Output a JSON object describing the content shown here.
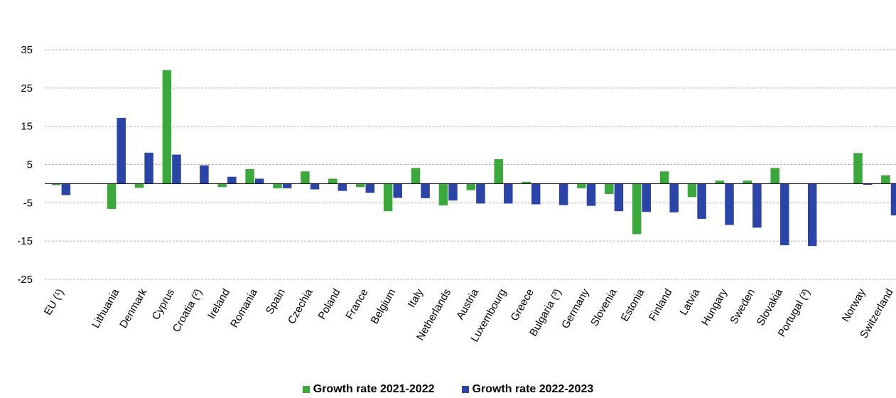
{
  "chart_data": {
    "type": "bar",
    "categories": [
      "EU (¹)",
      "Lithuania",
      "Denmark",
      "Cyprus",
      "Croatia (²)",
      "Ireland",
      "Romania",
      "Spain",
      "Czechia",
      "Poland",
      "France",
      "Belgium",
      "Italy",
      "Netherlands",
      "Austria",
      "Luxembourg",
      "Greece",
      "Bulgaria (³)",
      "Germany",
      "Slovenia",
      "Estonia",
      "Finland",
      "Latvia",
      "Hungary",
      "Sweden",
      "Slovakia",
      "Portugal (³)",
      "Norway",
      "Switzerland"
    ],
    "series": [
      {
        "name": "Growth rate 2021-2022",
        "color": "#3aa83a",
        "values": [
          -0.4,
          -6.6,
          -1.1,
          29.7,
          null,
          -0.9,
          3.8,
          -1.2,
          3.2,
          1.3,
          -0.9,
          -7.2,
          4.1,
          -5.7,
          -1.7,
          6.4,
          0.5,
          null,
          -1.2,
          -2.7,
          -13.2,
          3.2,
          -3.5,
          0.8,
          0.8,
          4.1,
          null,
          8.0,
          2.2
        ]
      },
      {
        "name": "Growth rate 2022-2023",
        "color": "#2a44a8",
        "values": [
          -3.0,
          17.2,
          8.1,
          7.6,
          4.8,
          1.8,
          1.3,
          -1.2,
          -1.5,
          -1.9,
          -2.4,
          -3.7,
          -3.8,
          -4.4,
          -5.2,
          -5.2,
          -5.4,
          -5.6,
          -5.8,
          -7.2,
          -7.4,
          -7.5,
          -9.2,
          -10.8,
          -11.5,
          -16.1,
          -16.3,
          -0.3,
          -8.3
        ]
      }
    ],
    "yticks": [
      35,
      25,
      15,
      5,
      -5,
      -15,
      -25
    ],
    "ylim": [
      -25,
      35
    ],
    "grid": true,
    "legend_position": "bottom-center",
    "gap_after_index": [
      0,
      26
    ]
  }
}
